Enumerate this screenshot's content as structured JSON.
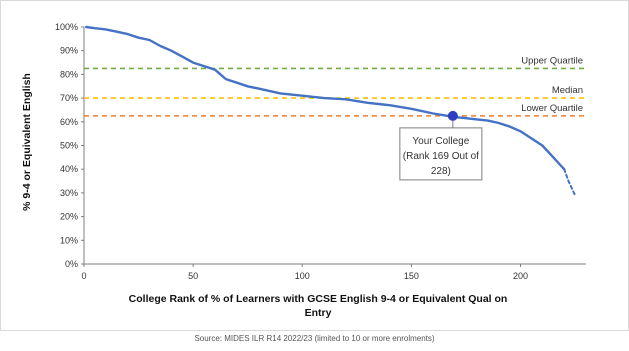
{
  "chart_data": {
    "type": "line",
    "title": "",
    "xlabel_lines": [
      "College Rank of % of Learners with GCSE English 9-4 or Equivalent Qual on",
      "Entry"
    ],
    "ylabel": "% 9-4 or Equivalent English",
    "xlim": [
      0,
      230
    ],
    "ylim": [
      0,
      100
    ],
    "x_ticks": [
      0,
      50,
      100,
      150,
      200
    ],
    "x_tick_labels": [
      "0",
      "50",
      "100",
      "150",
      "200"
    ],
    "y_ticks": [
      0,
      10,
      20,
      30,
      40,
      50,
      60,
      70,
      80,
      90,
      100
    ],
    "y_tick_labels": [
      "0%",
      "10%",
      "20%",
      "30%",
      "40%",
      "50%",
      "60%",
      "70%",
      "80%",
      "90%",
      "100%"
    ],
    "grid": false,
    "series": [
      {
        "color": "#4472c4",
        "x": [
          1,
          5,
          10,
          15,
          20,
          25,
          30,
          35,
          40,
          45,
          50,
          55,
          60,
          65,
          70,
          75,
          80,
          90,
          100,
          110,
          120,
          130,
          140,
          150,
          160,
          170,
          175,
          180,
          185,
          190,
          195,
          200,
          205,
          210,
          215,
          218,
          220
        ],
        "y": [
          100,
          99.5,
          99,
          98,
          97,
          95.5,
          94.5,
          92,
          90,
          87.5,
          85,
          83.5,
          82,
          78,
          76.5,
          75,
          74,
          72,
          71,
          70,
          69.5,
          68,
          67,
          65.5,
          63.5,
          62,
          61.5,
          61,
          60.5,
          59.5,
          58,
          56,
          53,
          50,
          45,
          42,
          40
        ]
      },
      {
        "style": "dashed",
        "color": "#4472c4",
        "x": [
          220,
          222,
          225
        ],
        "y": [
          40,
          35,
          29
        ]
      }
    ],
    "reference_lines": [
      {
        "label": "Upper Quartile",
        "y": 82.5,
        "color": "#70ad47"
      },
      {
        "label": "Median",
        "y": 70,
        "color": "#ffc000"
      },
      {
        "label": "Lower Quartile",
        "y": 62.5,
        "color": "#ed7d31"
      }
    ],
    "highlight": {
      "x": 169,
      "y": 62.5,
      "color": "#2f3fc0",
      "label_lines": [
        "Your College",
        "(Rank 169 Out of",
        "228)"
      ]
    }
  },
  "source": "Source: MIDES ILR R14 2022/23 (limited to 10 or more enrolments)"
}
